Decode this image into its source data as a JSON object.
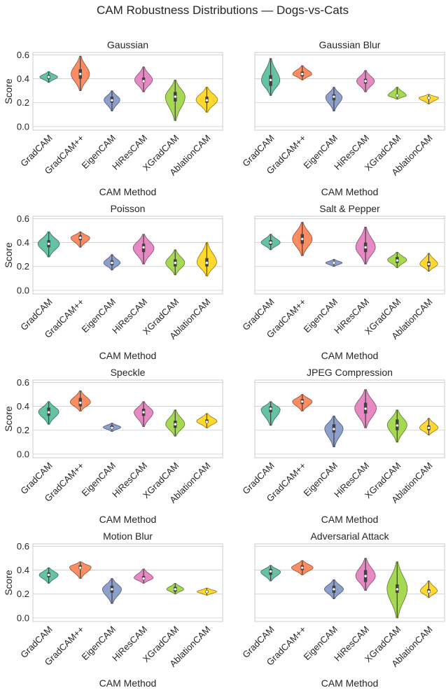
{
  "figure": {
    "title": "CAM Robustness Distributions — Dogs-vs-Cats"
  },
  "chart_data": {
    "type": "violin",
    "shared_y": true,
    "ylabel": "Score",
    "xlabel": "CAM Method",
    "ylim": [
      -0.03,
      0.62
    ],
    "yticks": [
      0.0,
      0.2,
      0.4,
      0.6
    ],
    "ytick_labels": [
      "0.0",
      "0.2",
      "0.4",
      "0.6"
    ],
    "grid": "horizontal",
    "categories": [
      "GradCAM",
      "GradCAM++",
      "EigenCAM",
      "HiResCAM",
      "XGradCAM",
      "AblationCAM"
    ],
    "colors": [
      "#66c2a5",
      "#fc8d62",
      "#8da0cb",
      "#e78ac3",
      "#a6d854",
      "#ffd92f"
    ],
    "panels": [
      {
        "title": "Gaussian",
        "series": [
          {
            "min": 0.37,
            "q1": 0.4,
            "median": 0.415,
            "q3": 0.43,
            "max": 0.46,
            "width": 0.56
          },
          {
            "min": 0.3,
            "q1": 0.4,
            "median": 0.44,
            "q3": 0.48,
            "max": 0.59,
            "width": 0.58
          },
          {
            "min": 0.13,
            "q1": 0.2,
            "median": 0.22,
            "q3": 0.25,
            "max": 0.3,
            "width": 0.5
          },
          {
            "min": 0.29,
            "q1": 0.37,
            "median": 0.38,
            "q3": 0.41,
            "max": 0.5,
            "width": 0.56
          },
          {
            "min": 0.05,
            "q1": 0.21,
            "median": 0.25,
            "q3": 0.29,
            "max": 0.39,
            "width": 0.62
          },
          {
            "min": 0.12,
            "q1": 0.2,
            "median": 0.22,
            "q3": 0.25,
            "max": 0.33,
            "width": 0.68
          }
        ]
      },
      {
        "title": "Gaussian Blur",
        "series": [
          {
            "min": 0.26,
            "q1": 0.34,
            "median": 0.39,
            "q3": 0.43,
            "max": 0.57,
            "width": 0.58
          },
          {
            "min": 0.39,
            "q1": 0.42,
            "median": 0.44,
            "q3": 0.46,
            "max": 0.51,
            "width": 0.6
          },
          {
            "min": 0.13,
            "q1": 0.22,
            "median": 0.25,
            "q3": 0.27,
            "max": 0.33,
            "width": 0.52
          },
          {
            "min": 0.29,
            "q1": 0.36,
            "median": 0.38,
            "q3": 0.4,
            "max": 0.47,
            "width": 0.56
          },
          {
            "min": 0.23,
            "q1": 0.25,
            "median": 0.26,
            "q3": 0.27,
            "max": 0.33,
            "width": 0.58
          },
          {
            "min": 0.19,
            "q1": 0.23,
            "median": 0.24,
            "q3": 0.25,
            "max": 0.27,
            "width": 0.62
          }
        ]
      },
      {
        "title": "Poisson",
        "series": [
          {
            "min": 0.28,
            "q1": 0.36,
            "median": 0.39,
            "q3": 0.42,
            "max": 0.49,
            "width": 0.68
          },
          {
            "min": 0.36,
            "q1": 0.42,
            "median": 0.44,
            "q3": 0.46,
            "max": 0.49,
            "width": 0.6
          },
          {
            "min": 0.17,
            "q1": 0.21,
            "median": 0.23,
            "q3": 0.25,
            "max": 0.3,
            "width": 0.52
          },
          {
            "min": 0.22,
            "q1": 0.32,
            "median": 0.36,
            "q3": 0.39,
            "max": 0.47,
            "width": 0.66
          },
          {
            "min": 0.13,
            "q1": 0.2,
            "median": 0.23,
            "q3": 0.26,
            "max": 0.34,
            "width": 0.6
          },
          {
            "min": 0.12,
            "q1": 0.2,
            "median": 0.23,
            "q3": 0.27,
            "max": 0.4,
            "width": 0.62
          }
        ]
      },
      {
        "title": "Salt & Pepper",
        "series": [
          {
            "min": 0.34,
            "q1": 0.38,
            "median": 0.4,
            "q3": 0.42,
            "max": 0.47,
            "width": 0.6
          },
          {
            "min": 0.29,
            "q1": 0.39,
            "median": 0.43,
            "q3": 0.47,
            "max": 0.57,
            "width": 0.62
          },
          {
            "min": 0.2,
            "q1": 0.22,
            "median": 0.23,
            "q3": 0.24,
            "max": 0.26,
            "width": 0.52
          },
          {
            "min": 0.22,
            "q1": 0.32,
            "median": 0.36,
            "q3": 0.4,
            "max": 0.53,
            "width": 0.62
          },
          {
            "min": 0.19,
            "q1": 0.23,
            "median": 0.25,
            "q3": 0.28,
            "max": 0.32,
            "width": 0.6
          },
          {
            "min": 0.16,
            "q1": 0.2,
            "median": 0.22,
            "q3": 0.24,
            "max": 0.31,
            "width": 0.56
          }
        ]
      },
      {
        "title": "Speckle",
        "series": [
          {
            "min": 0.25,
            "q1": 0.32,
            "median": 0.35,
            "q3": 0.39,
            "max": 0.44,
            "width": 0.64
          },
          {
            "min": 0.36,
            "q1": 0.4,
            "median": 0.43,
            "q3": 0.47,
            "max": 0.53,
            "width": 0.64
          },
          {
            "min": 0.19,
            "q1": 0.21,
            "median": 0.22,
            "q3": 0.24,
            "max": 0.26,
            "width": 0.56
          },
          {
            "min": 0.23,
            "q1": 0.32,
            "median": 0.35,
            "q3": 0.38,
            "max": 0.44,
            "width": 0.6
          },
          {
            "min": 0.15,
            "q1": 0.22,
            "median": 0.25,
            "q3": 0.28,
            "max": 0.37,
            "width": 0.6
          },
          {
            "min": 0.22,
            "q1": 0.26,
            "median": 0.27,
            "q3": 0.29,
            "max": 0.34,
            "width": 0.64
          }
        ]
      },
      {
        "title": "JPEG Compression",
        "series": [
          {
            "min": 0.24,
            "q1": 0.35,
            "median": 0.38,
            "q3": 0.4,
            "max": 0.44,
            "width": 0.6
          },
          {
            "min": 0.36,
            "q1": 0.42,
            "median": 0.44,
            "q3": 0.46,
            "max": 0.5,
            "width": 0.62
          },
          {
            "min": 0.06,
            "q1": 0.18,
            "median": 0.21,
            "q3": 0.25,
            "max": 0.32,
            "width": 0.58
          },
          {
            "min": 0.22,
            "q1": 0.34,
            "median": 0.38,
            "q3": 0.43,
            "max": 0.54,
            "width": 0.68
          },
          {
            "min": 0.1,
            "q1": 0.2,
            "median": 0.24,
            "q3": 0.29,
            "max": 0.37,
            "width": 0.62
          },
          {
            "min": 0.16,
            "q1": 0.2,
            "median": 0.22,
            "q3": 0.24,
            "max": 0.3,
            "width": 0.58
          }
        ]
      },
      {
        "title": "Motion Blur",
        "series": [
          {
            "min": 0.29,
            "q1": 0.34,
            "median": 0.36,
            "q3": 0.38,
            "max": 0.42,
            "width": 0.6
          },
          {
            "min": 0.33,
            "q1": 0.41,
            "median": 0.42,
            "q3": 0.44,
            "max": 0.47,
            "width": 0.68
          },
          {
            "min": 0.12,
            "q1": 0.21,
            "median": 0.24,
            "q3": 0.27,
            "max": 0.33,
            "width": 0.6
          },
          {
            "min": 0.29,
            "q1": 0.32,
            "median": 0.33,
            "q3": 0.35,
            "max": 0.41,
            "width": 0.6
          },
          {
            "min": 0.2,
            "q1": 0.22,
            "median": 0.24,
            "q3": 0.26,
            "max": 0.29,
            "width": 0.54
          },
          {
            "min": 0.19,
            "q1": 0.21,
            "median": 0.22,
            "q3": 0.23,
            "max": 0.25,
            "width": 0.62
          }
        ]
      },
      {
        "title": "Adversarial Attack",
        "series": [
          {
            "min": 0.31,
            "q1": 0.36,
            "median": 0.39,
            "q3": 0.41,
            "max": 0.44,
            "width": 0.62
          },
          {
            "min": 0.36,
            "q1": 0.4,
            "median": 0.42,
            "q3": 0.44,
            "max": 0.48,
            "width": 0.68
          },
          {
            "min": 0.16,
            "q1": 0.21,
            "median": 0.24,
            "q3": 0.27,
            "max": 0.32,
            "width": 0.6
          },
          {
            "min": 0.23,
            "q1": 0.3,
            "median": 0.35,
            "q3": 0.4,
            "max": 0.5,
            "width": 0.62
          },
          {
            "min": 0.0,
            "q1": 0.21,
            "median": 0.24,
            "q3": 0.28,
            "max": 0.47,
            "width": 0.64
          },
          {
            "min": 0.17,
            "q1": 0.21,
            "median": 0.22,
            "q3": 0.24,
            "max": 0.31,
            "width": 0.54
          }
        ]
      }
    ]
  }
}
